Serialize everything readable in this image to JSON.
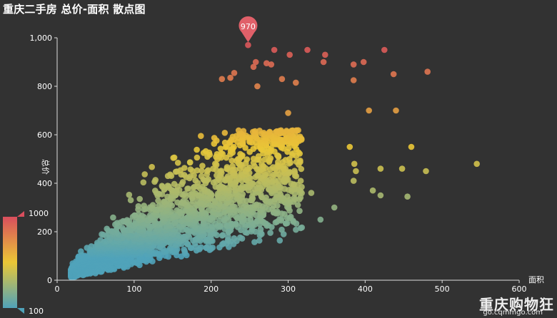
{
  "chart_data": {
    "type": "scatter",
    "title": "重庆二手房 总价-面积 散点图",
    "xlabel": "面积",
    "ylabel": "总价",
    "xlim": [
      0,
      600
    ],
    "ylim": [
      0,
      1000
    ],
    "x_ticks": [
      "0",
      "100",
      "200",
      "300",
      "400",
      "500",
      "600"
    ],
    "y_ticks": [
      "0",
      "200",
      "400",
      "600",
      "800",
      "1,000"
    ],
    "max_marker": {
      "label": "970",
      "x": 248,
      "y": 970
    },
    "visual_map": {
      "max_label": "1000",
      "min_label": "100",
      "min": 100,
      "max": 1000,
      "colors": [
        "#50a3ba",
        "#eac736",
        "#d94e5d"
      ]
    },
    "grid": false,
    "outliers": [
      [
        248,
        970
      ],
      [
        282,
        950
      ],
      [
        302,
        930
      ],
      [
        325,
        950
      ],
      [
        348,
        930
      ],
      [
        258,
        900
      ],
      [
        272,
        895
      ],
      [
        278,
        890
      ],
      [
        346,
        900
      ],
      [
        385,
        890
      ],
      [
        398,
        900
      ],
      [
        425,
        950
      ],
      [
        437,
        850
      ],
      [
        481,
        860
      ],
      [
        255,
        880
      ],
      [
        385,
        825
      ],
      [
        310,
        815
      ],
      [
        225,
        835
      ],
      [
        440,
        700
      ],
      [
        405,
        700
      ],
      [
        460,
        550
      ],
      [
        420,
        460
      ],
      [
        380,
        550
      ],
      [
        386,
        480
      ],
      [
        388,
        450
      ],
      [
        385,
        410
      ],
      [
        410,
        370
      ],
      [
        420,
        350
      ],
      [
        448,
        460
      ],
      [
        455,
        345
      ],
      [
        479,
        450
      ],
      [
        545,
        480
      ],
      [
        360,
        300
      ],
      [
        330,
        360
      ],
      [
        342,
        250
      ],
      [
        214,
        830
      ],
      [
        230,
        855
      ],
      [
        260,
        800
      ],
      [
        292,
        830
      ],
      [
        300,
        690
      ]
    ],
    "series_description_note": ""
  },
  "watermark": {
    "line1": "重庆购物狂",
    "line2": "go.cqmmgo.com"
  }
}
